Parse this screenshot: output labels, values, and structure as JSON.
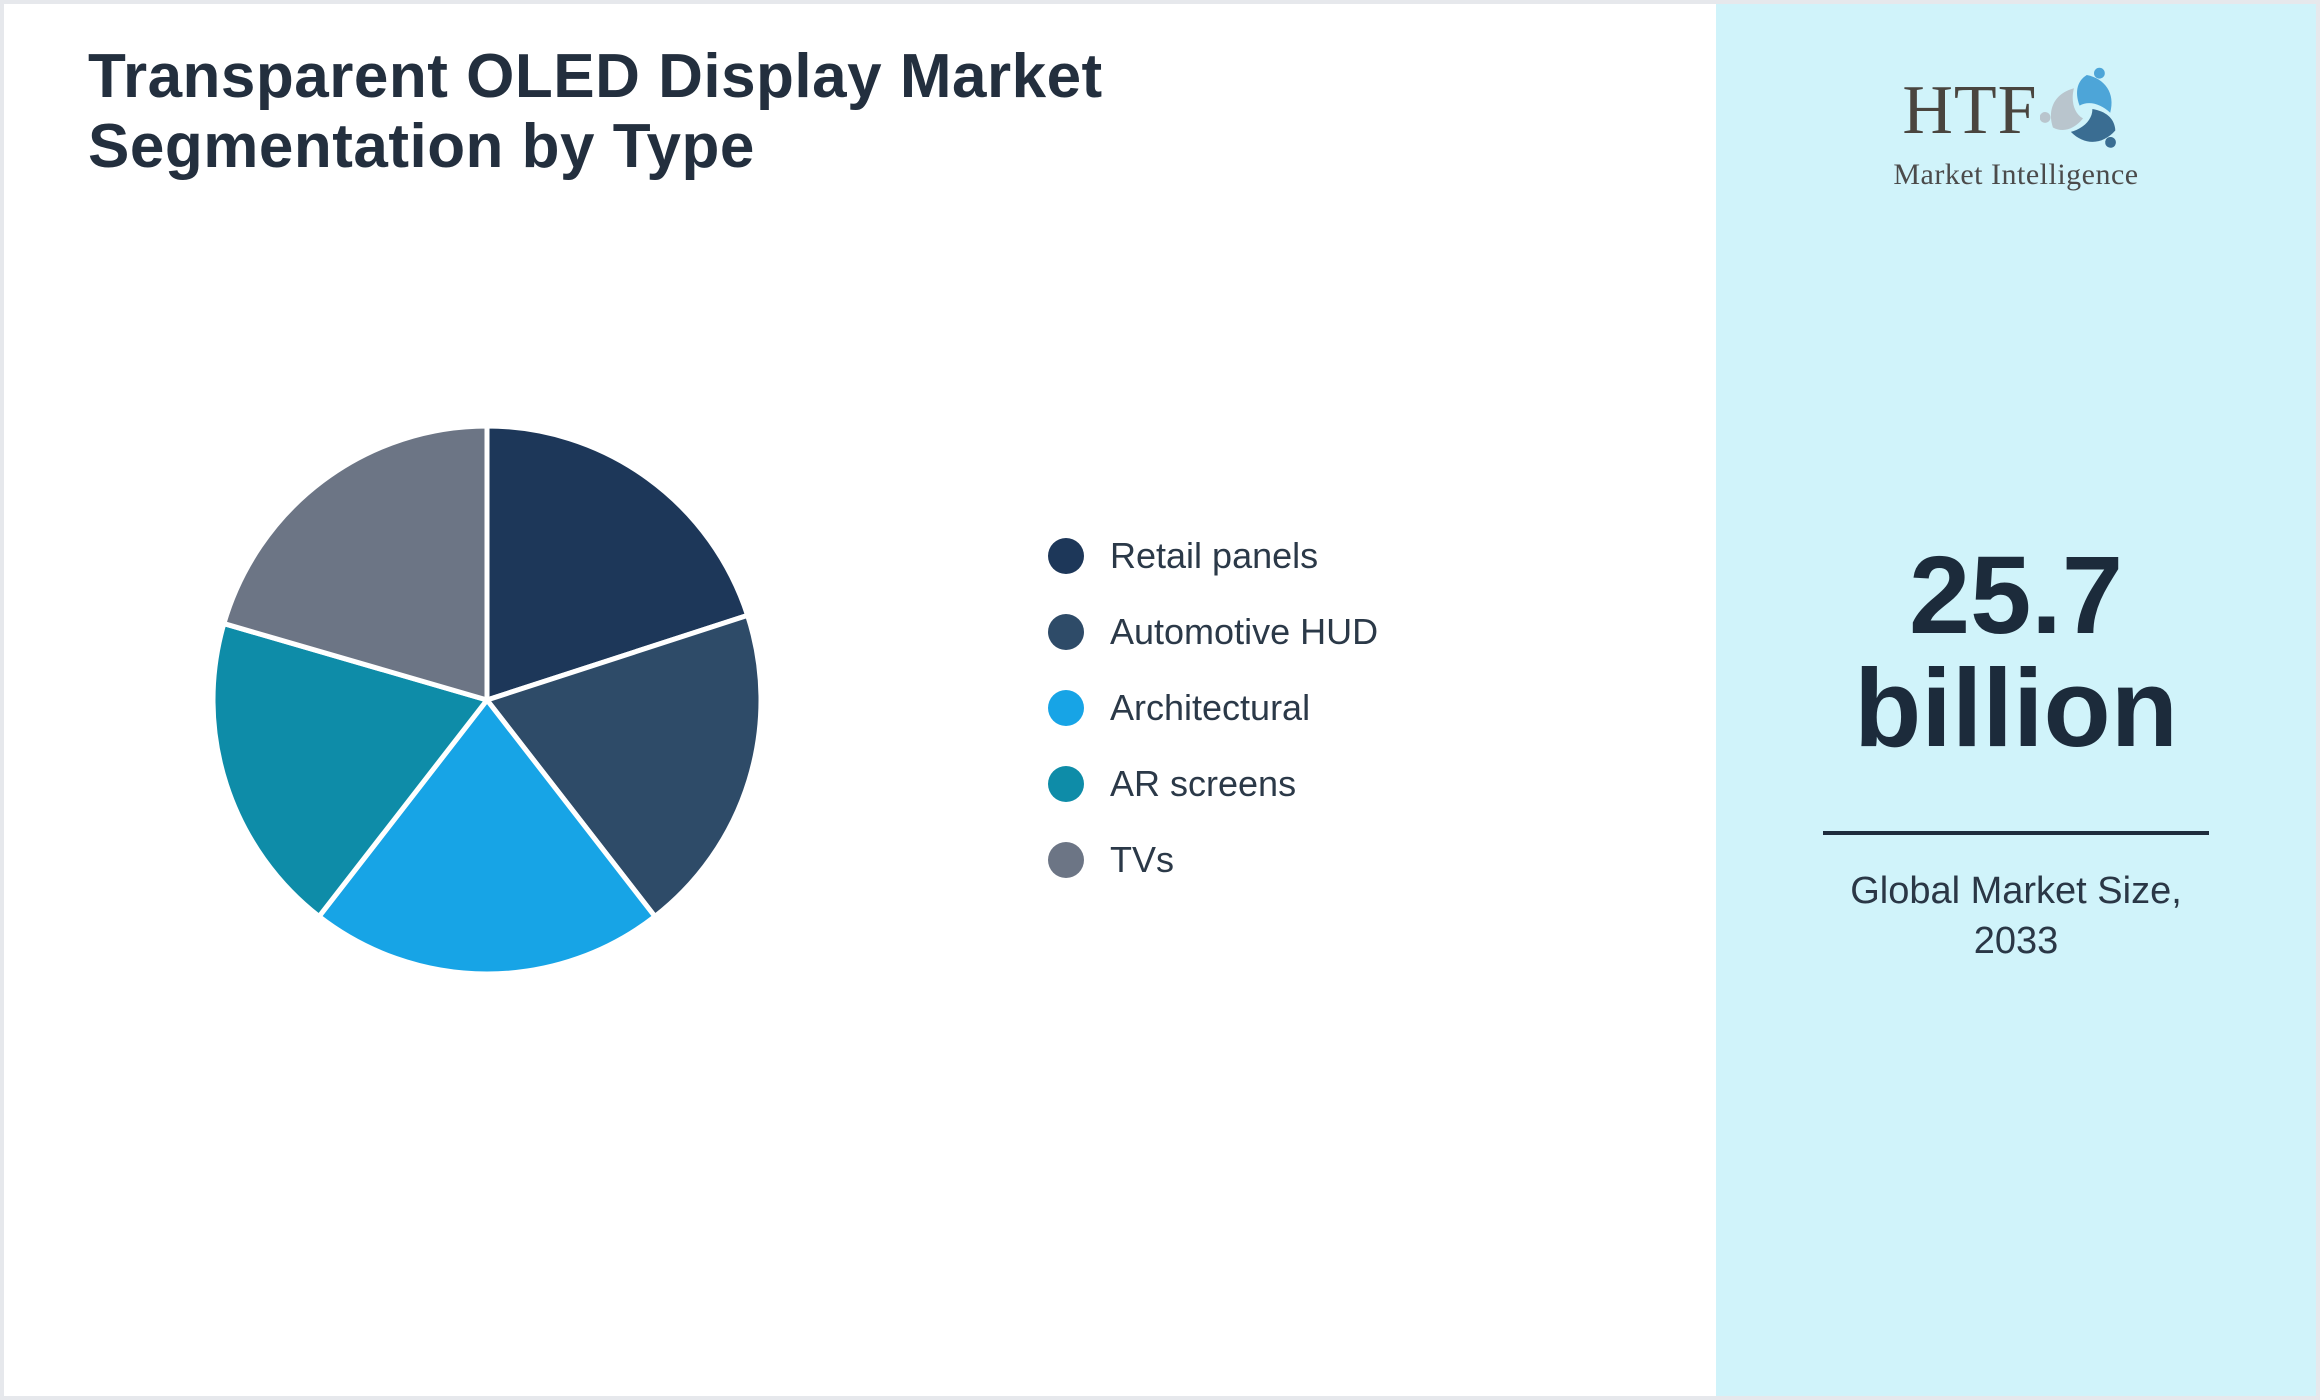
{
  "header": {
    "title_line1": "Transparent OLED Display Market",
    "title_line2": "Segmentation by Type"
  },
  "chart_data": {
    "type": "pie",
    "title": "Transparent OLED Display Market Segmentation by Type",
    "start_angle_deg": 0,
    "direction": "clockwise",
    "legend_position": "right",
    "values_shown_on_chart": false,
    "segments": [
      {
        "label": "Retail panels",
        "value": 20.0,
        "color": "#1d3759"
      },
      {
        "label": "Automotive HUD",
        "value": 19.5,
        "color": "#2e4b68"
      },
      {
        "label": "Architectural",
        "value": 21.0,
        "color": "#17a4e6"
      },
      {
        "label": "AR screens",
        "value": 19.0,
        "color": "#0e8ca8"
      },
      {
        "label": "TVs",
        "value": 20.5,
        "color": "#6c7585"
      }
    ],
    "slice_separator_color": "#ffffff"
  },
  "panel": {
    "background": "#d0f3fa",
    "logo": {
      "text": "HTF",
      "subtext": "Market Intelligence",
      "swirl_colors": [
        "#4da5d8",
        "#b9c5cd",
        "#3a6d92"
      ]
    },
    "market_size_value": "25.7",
    "market_size_unit": "billion",
    "divider_color": "#1e2c3c",
    "caption_line1": "Global Market Size,",
    "caption_line2": "2033"
  }
}
